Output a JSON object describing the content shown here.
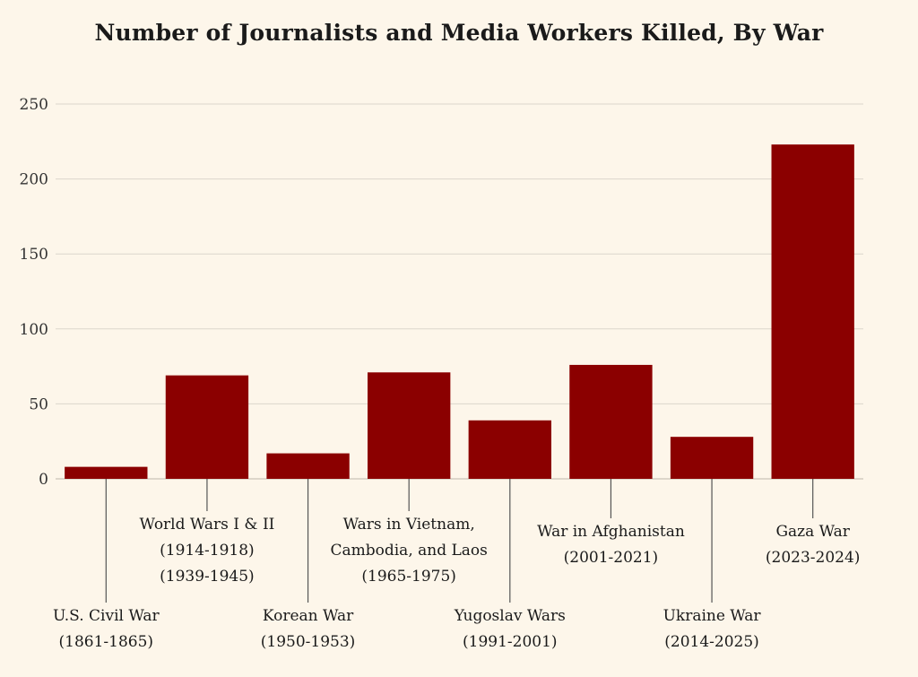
{
  "chart_data": {
    "type": "bar",
    "title": "Number of Journalists and Media Workers Killed, By War",
    "xlabel": "",
    "ylabel": "",
    "ylim": [
      0,
      250
    ],
    "yticks": [
      0,
      50,
      100,
      150,
      200,
      250
    ],
    "grid": true,
    "bar_color": "#8b0000",
    "categories": [
      [
        "U.S. Civil War",
        "(1861-1865)"
      ],
      [
        "World Wars I & II",
        "(1914-1918)",
        "(1939-1945)"
      ],
      [
        "Korean War",
        "(1950-1953)"
      ],
      [
        "Wars in Vietnam,",
        "Cambodia, and Laos",
        "(1965-1975)"
      ],
      [
        "Yugoslav Wars",
        "(1991-2001)"
      ],
      [
        "War in Afghanistan",
        "(2001-2021)"
      ],
      [
        "Ukraine War",
        "(2014-2025)"
      ],
      [
        "Gaza War",
        "(2023-2024)"
      ]
    ],
    "values": [
      8,
      69,
      17,
      71,
      39,
      76,
      28,
      223
    ]
  }
}
